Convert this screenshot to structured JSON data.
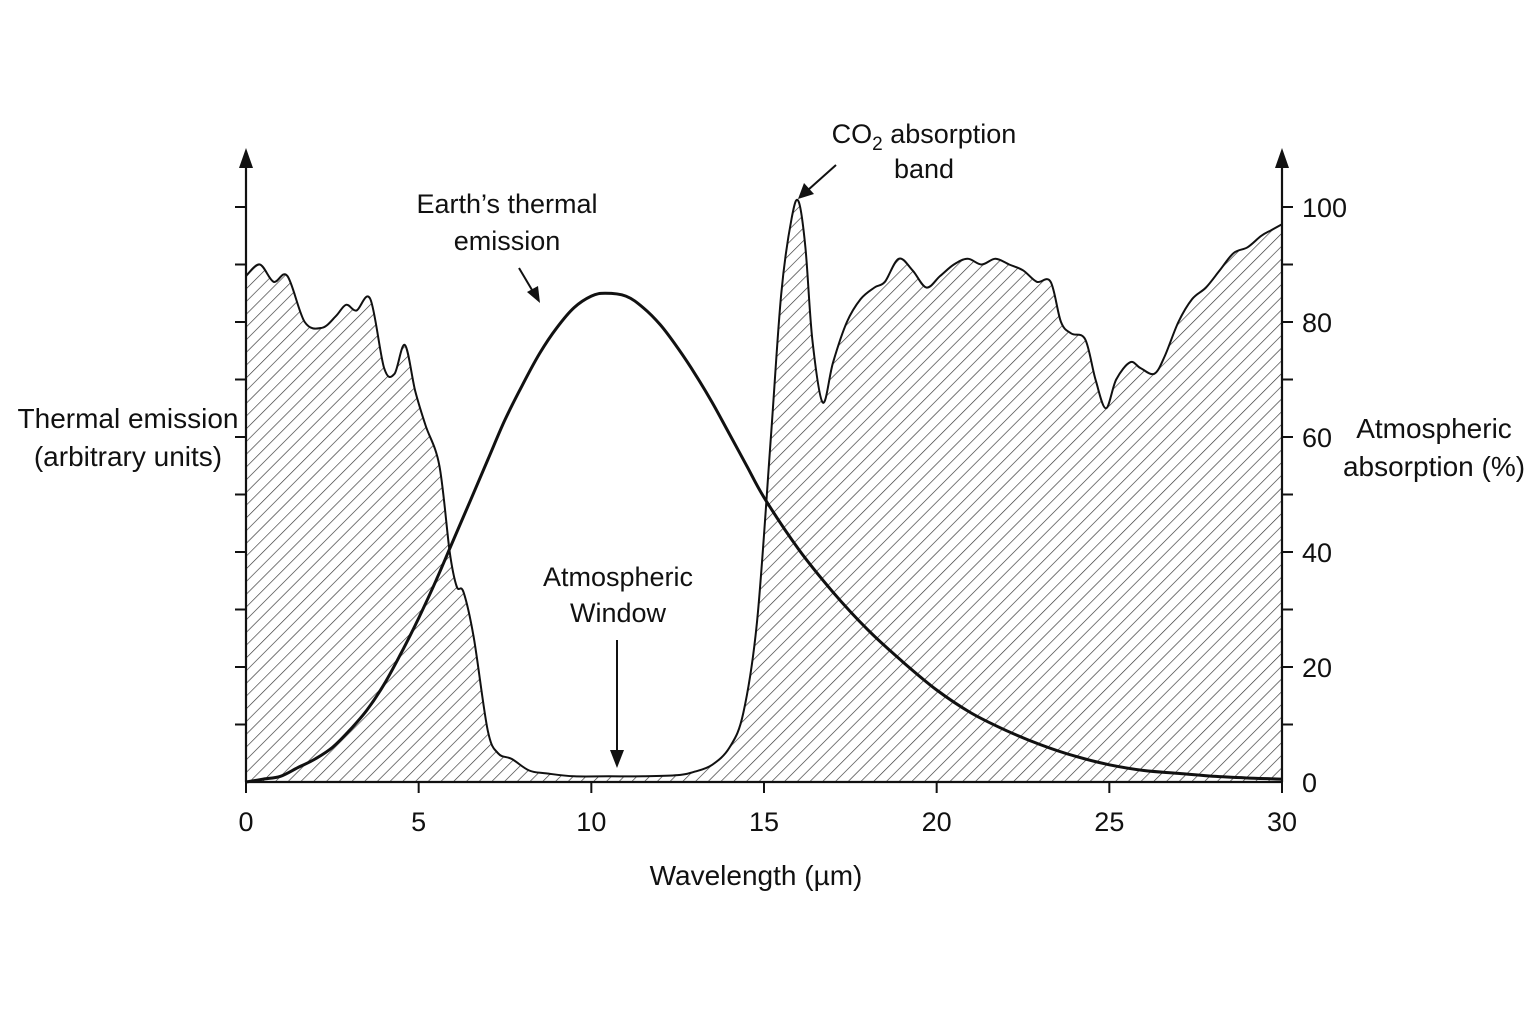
{
  "colors": {
    "ink": "#111111",
    "background": "#ffffff",
    "hatch": "#333333"
  },
  "chart_data": {
    "type": "line",
    "title": "",
    "xlabel": "Wavelength (µm)",
    "ylabel_left": {
      "line1": "Thermal emission",
      "line2": "(arbitrary units)"
    },
    "ylabel_right": {
      "line1": "Atmospheric",
      "line2": "absorption (%)"
    },
    "xlim": [
      0,
      30
    ],
    "ylim_right": [
      0,
      100
    ],
    "x_ticks": [
      "0",
      "5",
      "10",
      "15",
      "20",
      "25",
      "30"
    ],
    "y_ticks_right": [
      "0",
      "20",
      "40",
      "60",
      "80",
      "100"
    ],
    "grid": false,
    "legend": "none",
    "series": [
      {
        "style": "hatched-area",
        "axis": "right",
        "x": [
          0,
          0.4,
          0.8,
          1.2,
          1.7,
          2.2,
          2.6,
          2.9,
          3.2,
          3.6,
          4.0,
          4.3,
          4.6,
          4.9,
          5.2,
          5.6,
          5.9,
          6.1,
          6.3,
          6.6,
          7.0,
          7.3,
          7.7,
          8.2,
          8.7,
          9.5,
          10.5,
          11.5,
          12.5,
          13.0,
          13.5,
          14.0,
          14.4,
          14.8,
          15.2,
          15.5,
          15.8,
          16.0,
          16.2,
          16.4,
          16.7,
          17.0,
          17.4,
          17.8,
          18.2,
          18.5,
          18.9,
          19.3,
          19.7,
          20.1,
          20.5,
          20.9,
          21.3,
          21.7,
          22.1,
          22.5,
          22.9,
          23.3,
          23.6,
          23.9,
          24.3,
          24.6,
          24.9,
          25.2,
          25.6,
          25.9,
          26.3,
          26.6,
          27.0,
          27.4,
          27.8,
          28.2,
          28.6,
          29.0,
          29.4,
          29.7,
          30.0
        ],
        "values": [
          88,
          90,
          87,
          88,
          80,
          79,
          81,
          83,
          82,
          84,
          72,
          71,
          76,
          68,
          62,
          55,
          40,
          34,
          33,
          25,
          9,
          5,
          4,
          2,
          1.5,
          1,
          1,
          1,
          1.2,
          1.8,
          3,
          6,
          12,
          28,
          60,
          85,
          98,
          101,
          93,
          77,
          66,
          73,
          80,
          84,
          86,
          87,
          91,
          89,
          86,
          88,
          90,
          91,
          90,
          91,
          90,
          89,
          87,
          87,
          80,
          78,
          77,
          70,
          65,
          70,
          73,
          72,
          71,
          74,
          80,
          84,
          86,
          89,
          92,
          93,
          95,
          96,
          97
        ]
      },
      {
        "style": "line",
        "axis": "left",
        "x": [
          0,
          0.5,
          1.0,
          1.5,
          2.0,
          2.5,
          3.0,
          3.5,
          4.0,
          4.5,
          5.0,
          5.5,
          6.0,
          6.5,
          7.0,
          7.5,
          8.0,
          8.5,
          9.0,
          9.5,
          10.0,
          10.4,
          11.0,
          11.5,
          12.0,
          12.5,
          13.0,
          13.5,
          14.0,
          14.5,
          15.0,
          16.0,
          17.0,
          18.0,
          19.0,
          20.0,
          21.0,
          22.0,
          23.0,
          24.0,
          25.0,
          26.0,
          27.0,
          28.0,
          29.0,
          30.0
        ],
        "values": [
          0,
          0.5,
          1,
          2.5,
          4,
          6,
          9,
          12.5,
          17,
          22.5,
          28.5,
          35,
          42,
          49,
          56,
          63,
          69,
          74.5,
          79,
          82.5,
          84.5,
          85,
          84.5,
          82.5,
          79.5,
          75.5,
          71,
          66,
          60.5,
          55,
          49.5,
          40.5,
          33,
          26.5,
          21,
          16,
          12,
          9,
          6.5,
          4.5,
          3,
          2,
          1.5,
          1,
          0.7,
          0.5
        ]
      }
    ],
    "annotations": {
      "earth_emission": {
        "line1": "Earth’s thermal",
        "line2": "emission"
      },
      "co2_band": {
        "line1_pre": "CO",
        "line1_sub": "2",
        "line1_post": " absorption",
        "line2": "band"
      },
      "window": {
        "line1": "Atmospheric",
        "line2": "Window"
      }
    }
  }
}
